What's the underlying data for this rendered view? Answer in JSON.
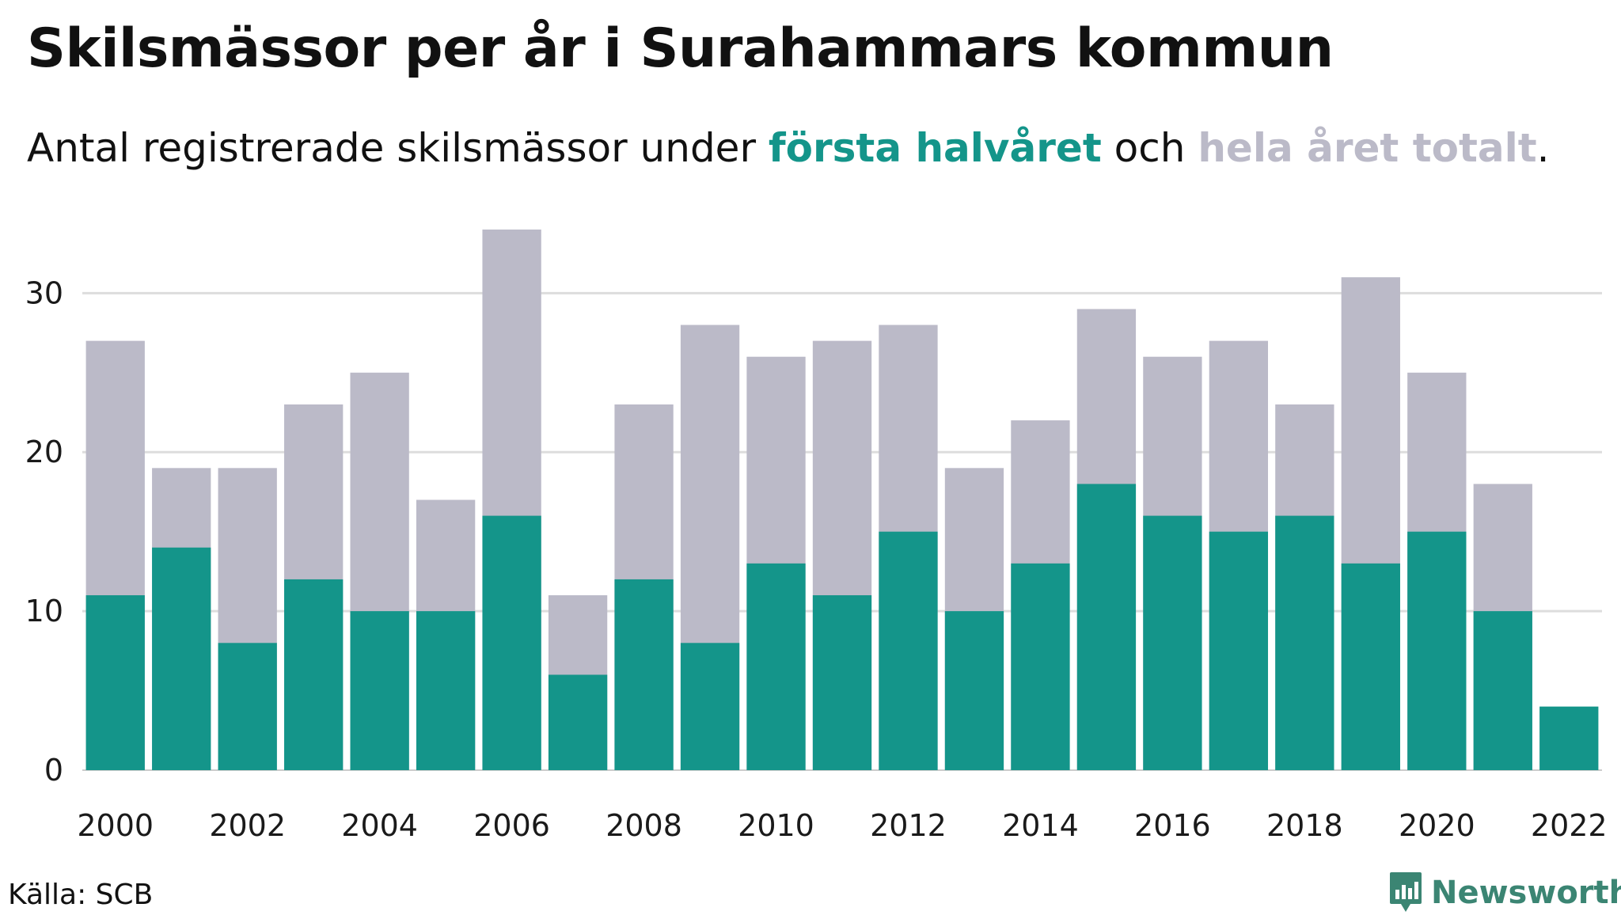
{
  "header": {
    "title": "Skilsmässor per år i Surahammars kommun",
    "subtitle_prefix": "Antal registrerade skilsmässor under ",
    "subtitle_half": "första halvåret",
    "subtitle_mid": " och ",
    "subtitle_total": "hela året totalt",
    "subtitle_suffix": "."
  },
  "footer": {
    "source": "Källa: SCB",
    "brand": "Newsworthy",
    "brand_icon": "newsworthy-logo-icon"
  },
  "colors": {
    "first_half": "#14958a",
    "total": "#bbbac8",
    "grid": "#dddddd",
    "brand": "#3b8573"
  },
  "chart_data": {
    "type": "bar",
    "stacked": "overlay",
    "title": "Skilsmässor per år i Surahammars kommun",
    "xlabel": "",
    "ylabel": "",
    "ylim": [
      0,
      34
    ],
    "yticks": [
      0,
      10,
      20,
      30
    ],
    "xtick_labels": [
      "2000",
      "2002",
      "2004",
      "2006",
      "2008",
      "2010",
      "2012",
      "2014",
      "2016",
      "2018",
      "2020",
      "2022"
    ],
    "grid": true,
    "categories": [
      "2000",
      "2001",
      "2002",
      "2003",
      "2004",
      "2005",
      "2006",
      "2007",
      "2008",
      "2009",
      "2010",
      "2011",
      "2012",
      "2013",
      "2014",
      "2015",
      "2016",
      "2017",
      "2018",
      "2019",
      "2020",
      "2021",
      "2022"
    ],
    "series": [
      {
        "name": "hela året totalt",
        "values": [
          27,
          19,
          19,
          23,
          25,
          17,
          34,
          11,
          23,
          28,
          26,
          27,
          28,
          19,
          22,
          29,
          26,
          27,
          23,
          31,
          25,
          18,
          null
        ]
      },
      {
        "name": "första halvåret",
        "values": [
          11,
          14,
          8,
          12,
          10,
          10,
          16,
          6,
          12,
          8,
          13,
          11,
          15,
          10,
          13,
          18,
          16,
          15,
          16,
          13,
          15,
          10,
          4
        ]
      }
    ]
  }
}
